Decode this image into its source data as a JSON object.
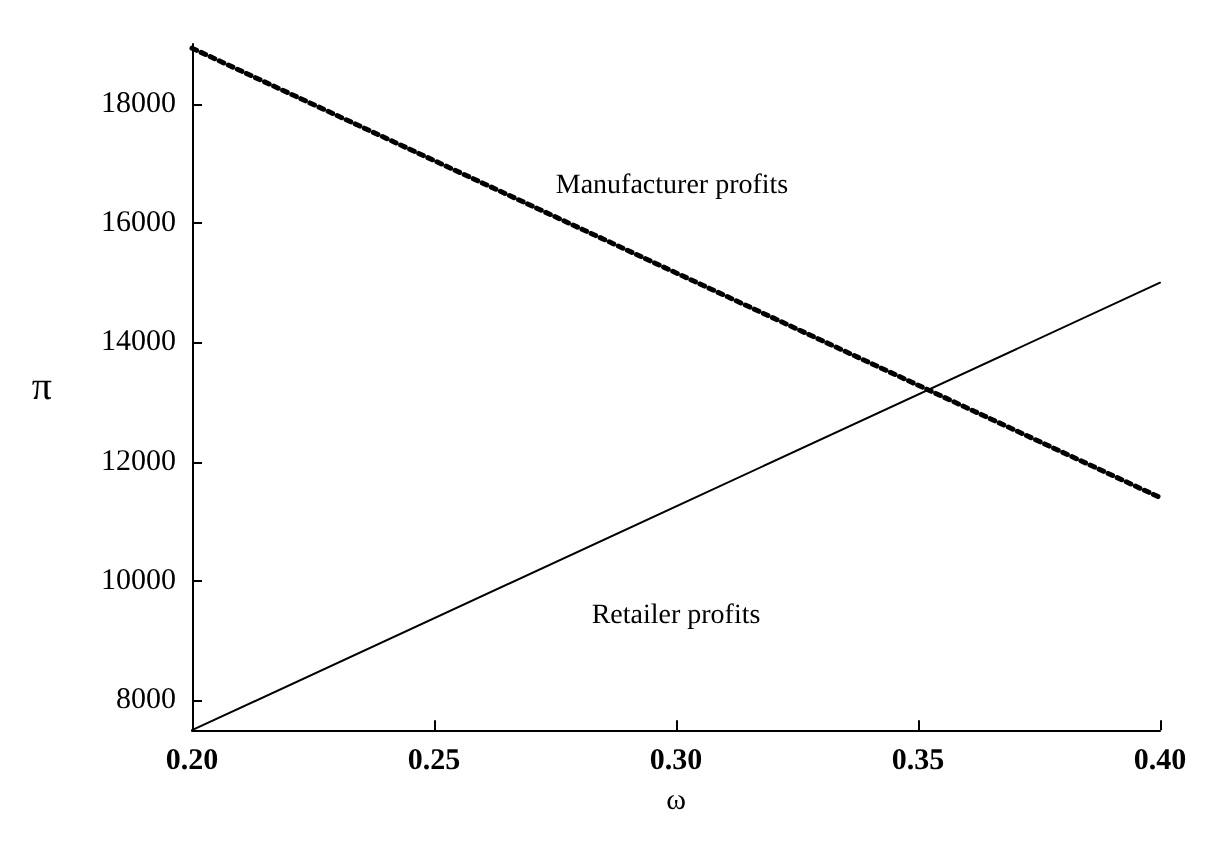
{
  "chart_data": {
    "type": "line",
    "xlabel": "ω",
    "ylabel": "π",
    "x": [
      0.2,
      0.4
    ],
    "series": [
      {
        "color": "#000000",
        "line_style": "dotted",
        "values": [
          18930,
          11400
        ]
      },
      {
        "color": "#000000",
        "line_style": "solid",
        "values": [
          7500,
          15000
        ]
      }
    ],
    "xlim": [
      0.2,
      0.4
    ],
    "ylim": [
      7500,
      19000
    ],
    "xticks": [
      {
        "value": 0.2,
        "label": "0.20"
      },
      {
        "value": 0.25,
        "label": "0.25"
      },
      {
        "value": 0.3,
        "label": "0.30"
      },
      {
        "value": 0.35,
        "label": "0.35"
      },
      {
        "value": 0.4,
        "label": "0.40"
      }
    ],
    "yticks": [
      8000,
      10000,
      12000,
      14000,
      16000,
      18000
    ],
    "annotations": [
      "Manufacturer profits",
      "Retailer profits"
    ],
    "grid": false,
    "marker": "none"
  }
}
